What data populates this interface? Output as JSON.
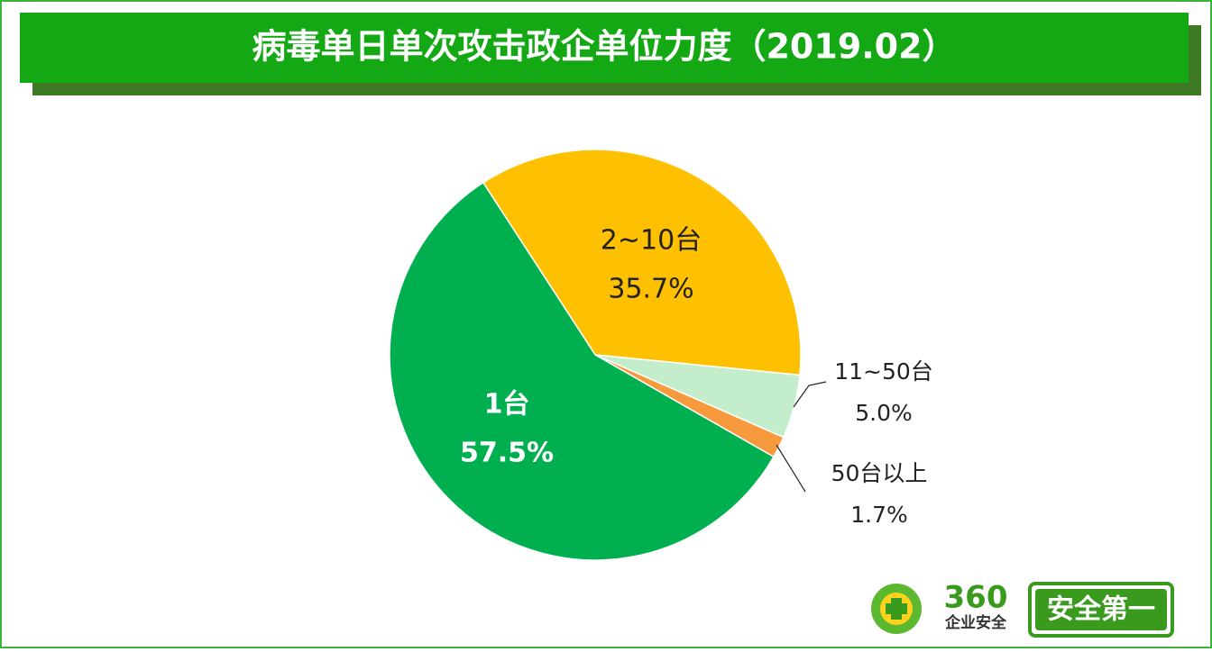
{
  "chart_data": {
    "type": "pie",
    "title": "病毒单日单次攻击政企单位力度（2019.02）",
    "categories": [
      "2~10台",
      "11~50台",
      "50台以上",
      "1台"
    ],
    "values": [
      35.7,
      5.0,
      1.7,
      57.5
    ],
    "value_labels": [
      "35.7%",
      "5.0%",
      "1.7%",
      "57.5%"
    ],
    "colors": [
      "#ffc000",
      "#c4edcc",
      "#f79a3e",
      "#00b050"
    ]
  },
  "logo": {
    "brand": "360",
    "sub": "企业安全",
    "slogan": "安全第一"
  }
}
